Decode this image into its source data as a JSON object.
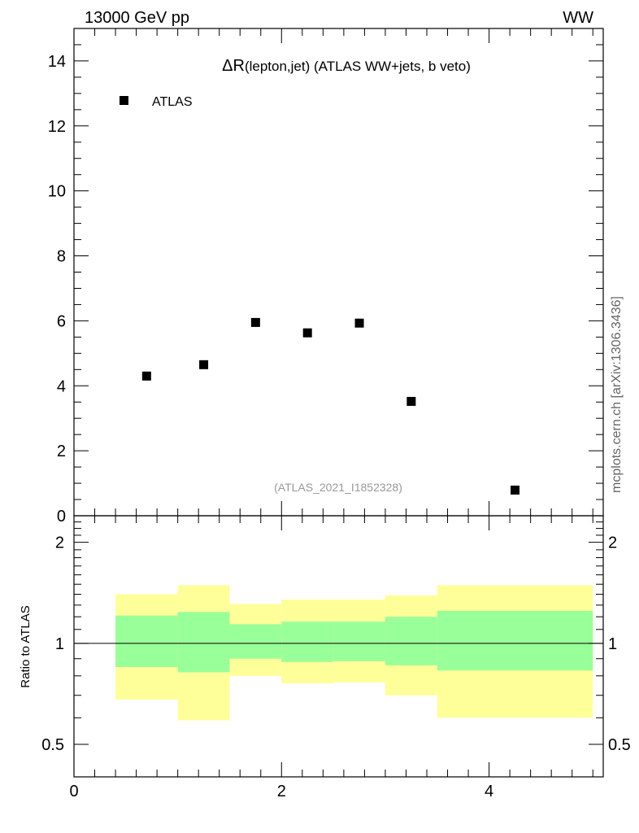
{
  "header": {
    "energy_label": "13000 GeV pp",
    "process_label": "WW",
    "side_label": "mcplots.cern.ch [arXiv:1306.3436]"
  },
  "chart_data": {
    "type": "scatter",
    "title_symbol": "ΔR",
    "title_sub": "(lepton,jet)",
    "title_rest": " (ATLAS WW+jets, b veto)",
    "watermark": "(ATLAS_2021_I1852328)",
    "legend": [
      "ATLAS"
    ],
    "legend_position": "top-left",
    "xlim": [
      0,
      5.1
    ],
    "main": {
      "ylim": [
        0,
        15
      ],
      "y_ticks": [
        0,
        2,
        4,
        6,
        8,
        10,
        12,
        14
      ],
      "y_tick_labels": [
        "0",
        "2",
        "4",
        "6",
        "8",
        "10",
        "12",
        "14"
      ],
      "series": [
        {
          "name": "ATLAS",
          "color": "#000000",
          "marker": "square",
          "x": [
            0.7,
            1.25,
            1.75,
            2.25,
            2.75,
            3.25,
            4.25
          ],
          "y": [
            4.3,
            4.65,
            5.95,
            5.63,
            5.93,
            3.52,
            0.79
          ]
        }
      ]
    },
    "ratio": {
      "ylabel": "Ratio to ATLAS",
      "ylim": [
        0.4,
        2.4
      ],
      "log_scale": true,
      "y_ticks": [
        0.5,
        1,
        2
      ],
      "y_tick_labels": [
        "0.5",
        "1",
        "2"
      ],
      "reference_line": 1,
      "band_colors": {
        "outer": "#ffff99",
        "inner": "#99ff99"
      },
      "bins": [
        {
          "x0": 0.4,
          "x1": 1.0,
          "outer_low": 0.68,
          "outer_high": 1.4,
          "inner_low": 0.85,
          "inner_high": 1.21
        },
        {
          "x0": 1.0,
          "x1": 1.5,
          "outer_low": 0.59,
          "outer_high": 1.49,
          "inner_low": 0.82,
          "inner_high": 1.24
        },
        {
          "x0": 1.5,
          "x1": 2.0,
          "outer_low": 0.8,
          "outer_high": 1.31,
          "inner_low": 0.9,
          "inner_high": 1.14
        },
        {
          "x0": 2.0,
          "x1": 2.5,
          "outer_low": 0.76,
          "outer_high": 1.35,
          "inner_low": 0.88,
          "inner_high": 1.16
        },
        {
          "x0": 2.5,
          "x1": 3.0,
          "outer_low": 0.765,
          "outer_high": 1.35,
          "inner_low": 0.885,
          "inner_high": 1.16
        },
        {
          "x0": 3.0,
          "x1": 3.5,
          "outer_low": 0.7,
          "outer_high": 1.39,
          "inner_low": 0.86,
          "inner_high": 1.2
        },
        {
          "x0": 3.5,
          "x1": 5.0,
          "outer_low": 0.6,
          "outer_high": 1.49,
          "inner_low": 0.83,
          "inner_high": 1.25
        }
      ]
    },
    "x_ticks": [
      0,
      2,
      4
    ],
    "x_tick_labels": [
      "0",
      "2",
      "4"
    ]
  }
}
